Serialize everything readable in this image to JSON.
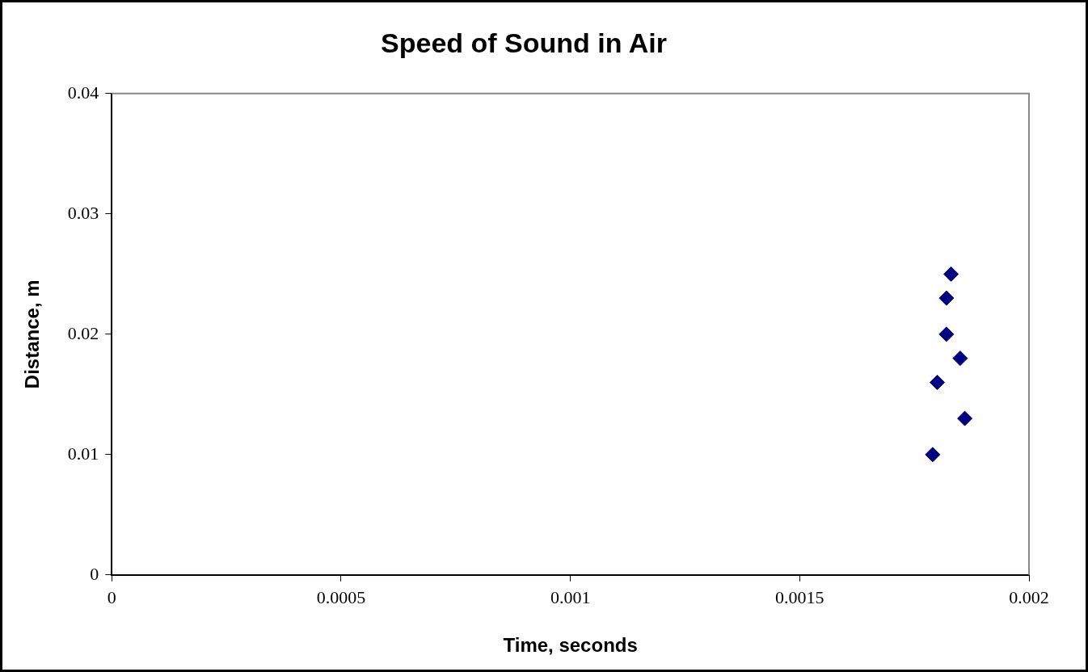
{
  "chart_data": {
    "type": "scatter",
    "title": "Speed of Sound in Air",
    "xlabel": "Time, seconds",
    "ylabel": "Distance, m",
    "x": [
      0.00179,
      0.0018,
      0.00182,
      0.00183,
      0.00182,
      0.00185,
      0.00186
    ],
    "series": [
      {
        "color": "#000080",
        "values": [
          0.01,
          0.016,
          0.02,
          0.025,
          0.023,
          0.018,
          0.013
        ]
      }
    ],
    "xlim": [
      0,
      0.002
    ],
    "xticks": [
      0,
      0.0005,
      0.001,
      0.0015,
      0.002
    ],
    "ylim": [
      0,
      0.04
    ],
    "yticks": [
      0,
      0.01,
      0.02,
      0.03,
      0.04
    ],
    "grid": false,
    "legend": false,
    "marker": "diamond"
  }
}
